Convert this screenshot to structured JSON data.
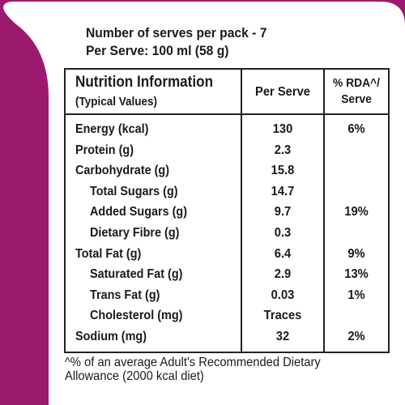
{
  "colors": {
    "frame": "#9c1a6e",
    "label_bg": "#ffffff",
    "text": "#1a1a1a"
  },
  "serves": {
    "per_pack": "Number of serves per pack - 7",
    "per_serve": "Per Serve: 100 ml (58 g)"
  },
  "table": {
    "header_title": "Nutrition Information",
    "header_subtitle": "(Typical Values)",
    "col_per_serve": "Per Serve",
    "col_rda_line1": "% RDA^/",
    "col_rda_line2": "Serve",
    "rows": [
      {
        "label": "Energy (kcal)",
        "value": "130",
        "rda": "6%",
        "indent": 0
      },
      {
        "label": "Protein (g)",
        "value": "2.3",
        "rda": "",
        "indent": 0
      },
      {
        "label": "Carbohydrate (g)",
        "value": "15.8",
        "rda": "",
        "indent": 0
      },
      {
        "label": "Total Sugars (g)",
        "value": "14.7",
        "rda": "",
        "indent": 1
      },
      {
        "label": "Added Sugars (g)",
        "value": "9.7",
        "rda": "19%",
        "indent": 1
      },
      {
        "label": "Dietary Fibre (g)",
        "value": "0.3",
        "rda": "",
        "indent": 1
      },
      {
        "label": "Total Fat (g)",
        "value": "6.4",
        "rda": "9%",
        "indent": 0
      },
      {
        "label": "Saturated Fat (g)",
        "value": "2.9",
        "rda": "13%",
        "indent": 1
      },
      {
        "label": "Trans Fat (g)",
        "value": "0.03",
        "rda": "1%",
        "indent": 1
      },
      {
        "label": "Cholesterol (mg)",
        "value": "Traces",
        "rda": "",
        "indent": 1
      },
      {
        "label": "Sodium (mg)",
        "value": "32",
        "rda": "2%",
        "indent": 0
      }
    ]
  },
  "footnote": {
    "line1": "^% of an average Adult's Recommended Dietary",
    "line2": "Allowance (2000 kcal diet)"
  }
}
